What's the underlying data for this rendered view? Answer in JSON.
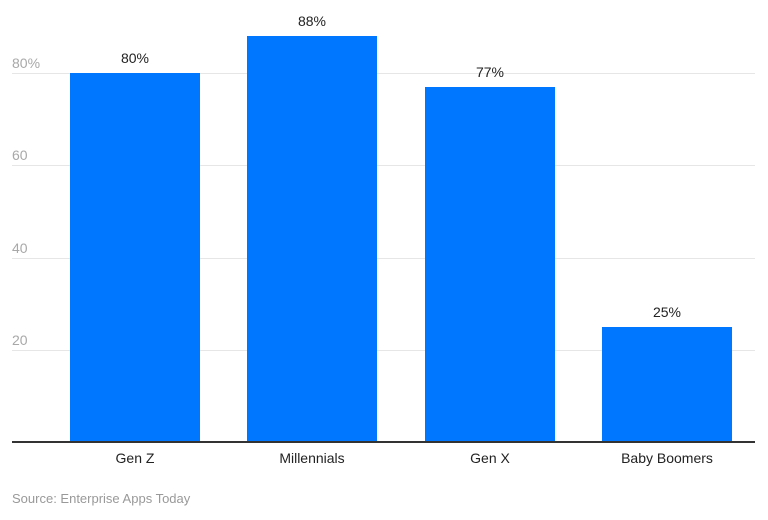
{
  "chart_data": {
    "type": "bar",
    "title": "",
    "xlabel": "",
    "ylabel": "",
    "categories": [
      "Gen Z",
      "Millennials",
      "Gen X",
      "Baby Boomers"
    ],
    "values": [
      80,
      88,
      77,
      25
    ],
    "value_labels": [
      "80%",
      "88%",
      "77%",
      "25%"
    ],
    "ylim": [
      0,
      90
    ],
    "yticks": [
      20,
      40,
      60,
      80
    ],
    "ytick_labels": [
      "20",
      "40",
      "60",
      "80%"
    ],
    "grid": true,
    "legend": null,
    "bar_color": "#0077ff"
  },
  "source": "Source: Enterprise Apps Today"
}
